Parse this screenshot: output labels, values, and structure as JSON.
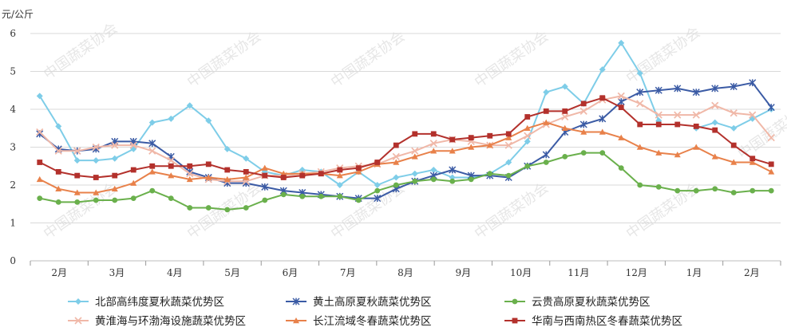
{
  "watermark": "中国蔬菜协会",
  "chart_data": {
    "type": "line",
    "ylabel": "元/公斤",
    "ylim": [
      0,
      6
    ],
    "yticks": [
      0,
      1,
      2,
      3,
      4,
      5,
      6
    ],
    "month_labels": [
      "2月",
      "3月",
      "4月",
      "5月",
      "6月",
      "7月",
      "8月",
      "9月",
      "10月",
      "11月",
      "12月",
      "1月",
      "2月"
    ],
    "grid": "horizontal",
    "legend_position": "bottom",
    "series": [
      {
        "name": "北部高纬度夏秋蔬菜优势区",
        "color": "#7ecde8",
        "marker": "diamond",
        "values": [
          4.35,
          3.55,
          2.65,
          2.65,
          2.7,
          2.95,
          3.65,
          3.75,
          4.1,
          3.7,
          2.95,
          2.7,
          2.35,
          2.25,
          2.4,
          2.35,
          2.0,
          2.35,
          2.0,
          2.2,
          2.3,
          2.4,
          2.2,
          2.2,
          2.3,
          2.6,
          3.15,
          4.45,
          4.6,
          4.15,
          5.05,
          5.75,
          4.95,
          3.7,
          null,
          3.5,
          3.65,
          3.5,
          3.75,
          4.0
        ]
      },
      {
        "name": "黄土高原夏秋蔬菜优势区",
        "color": "#3b5ba5",
        "marker": "star",
        "values": [
          3.35,
          2.95,
          2.9,
          2.95,
          3.15,
          3.15,
          3.1,
          2.75,
          2.35,
          2.2,
          2.05,
          2.05,
          1.95,
          1.85,
          1.8,
          1.75,
          1.7,
          1.65,
          1.65,
          1.9,
          2.1,
          2.25,
          2.4,
          2.25,
          2.25,
          2.2,
          2.5,
          2.8,
          3.4,
          3.6,
          3.75,
          4.2,
          4.45,
          4.5,
          4.55,
          4.45,
          4.55,
          4.6,
          4.7,
          4.05
        ]
      },
      {
        "name": "云贵高原夏秋蔬菜优势区",
        "color": "#6ab04c",
        "marker": "circle",
        "values": [
          1.65,
          1.55,
          1.55,
          1.6,
          1.6,
          1.65,
          1.85,
          1.65,
          1.4,
          1.4,
          1.35,
          1.4,
          1.6,
          1.75,
          1.7,
          1.7,
          1.7,
          1.6,
          1.85,
          2.0,
          2.1,
          2.15,
          2.1,
          2.15,
          2.3,
          2.25,
          2.5,
          2.6,
          2.75,
          2.85,
          2.85,
          2.45,
          2.0,
          1.95,
          1.85,
          1.85,
          1.9,
          1.8,
          1.85,
          1.85
        ]
      },
      {
        "name": "黄淮海与环渤海设施蔬菜优势区",
        "color": "#f0b8a8",
        "marker": "x",
        "values": [
          3.4,
          2.9,
          2.9,
          3.0,
          3.05,
          3.05,
          2.9,
          2.65,
          2.3,
          2.15,
          2.1,
          2.1,
          2.25,
          2.25,
          2.3,
          2.35,
          2.45,
          2.5,
          2.55,
          2.75,
          2.9,
          3.1,
          3.2,
          3.15,
          3.05,
          3.05,
          3.3,
          3.6,
          3.8,
          3.95,
          4.25,
          4.35,
          4.15,
          3.85,
          3.85,
          3.85,
          4.1,
          3.9,
          3.85,
          3.25
        ]
      },
      {
        "name": "长江流域冬春蔬菜优势区",
        "color": "#e8814a",
        "marker": "triangle",
        "values": [
          2.15,
          1.9,
          1.8,
          1.8,
          1.9,
          2.05,
          2.35,
          2.25,
          2.15,
          2.2,
          2.15,
          2.2,
          2.45,
          2.3,
          2.3,
          2.3,
          2.25,
          2.35,
          2.55,
          2.6,
          2.75,
          2.9,
          2.9,
          3.0,
          3.05,
          3.25,
          3.5,
          3.65,
          3.5,
          3.4,
          3.4,
          3.25,
          3.0,
          2.85,
          2.8,
          3.0,
          2.75,
          2.6,
          2.6,
          2.35
        ]
      },
      {
        "name": "华南与西南热区冬春蔬菜优势区",
        "color": "#b3312c",
        "marker": "square",
        "values": [
          2.6,
          2.35,
          2.25,
          2.2,
          2.25,
          2.4,
          2.5,
          2.5,
          2.5,
          2.55,
          2.4,
          2.35,
          2.25,
          2.2,
          2.25,
          2.3,
          2.4,
          2.45,
          2.6,
          3.05,
          3.35,
          3.35,
          3.2,
          3.25,
          3.3,
          3.35,
          3.8,
          3.95,
          3.95,
          4.15,
          4.3,
          4.05,
          3.6,
          3.6,
          3.6,
          3.55,
          3.45,
          3.05,
          2.7,
          2.55
        ]
      }
    ]
  }
}
